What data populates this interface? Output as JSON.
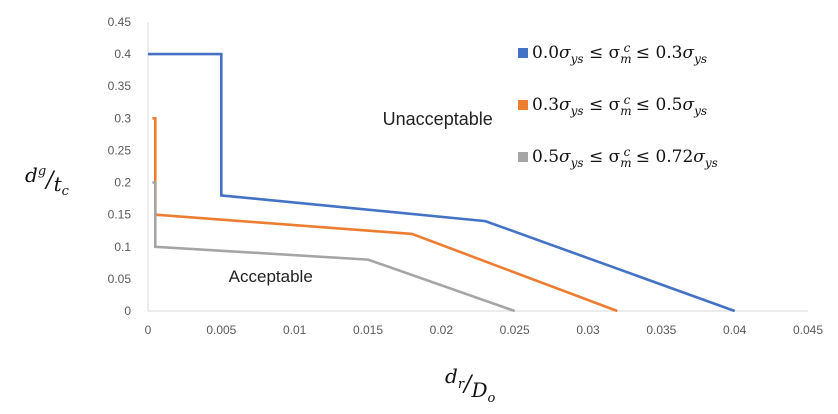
{
  "chart_data": {
    "type": "line",
    "x_axis": {
      "min": 0,
      "max": 0.045,
      "ticks": [
        "0",
        "0.005",
        "0.01",
        "0.015",
        "0.02",
        "0.025",
        "0.03",
        "0.035",
        "0.04",
        "0.045"
      ],
      "label": {
        "main": "d",
        "sub": "r",
        "den_main": "D",
        "den_sub": "o"
      }
    },
    "y_axis": {
      "min": 0,
      "max": 0.45,
      "ticks": [
        "0",
        "0.05",
        "0.1",
        "0.15",
        "0.2",
        "0.25",
        "0.3",
        "0.35",
        "0.4",
        "0.45"
      ],
      "label": {
        "main": "d",
        "sub": "g",
        "den_main": "t",
        "den_sub": "c"
      }
    },
    "grid": false,
    "legend_position": "top-right",
    "annotations": [
      {
        "text": "Unacceptable",
        "x": 0.016,
        "y": 0.29
      },
      {
        "text": "Acceptable",
        "x": 0.0055,
        "y": 0.045
      }
    ],
    "series": [
      {
        "name": "0.0σys ≤ σmc ≤ 0.3σys",
        "lo": "0.0",
        "hi": "0.3",
        "color": "#4472C4",
        "points": [
          [
            0,
            0.4
          ],
          [
            0.005,
            0.4
          ],
          [
            0.005,
            0.18
          ],
          [
            0.023,
            0.14
          ],
          [
            0.04,
            0
          ]
        ]
      },
      {
        "name": "0.3σys ≤ σmc ≤ 0.5σys",
        "lo": "0.3",
        "hi": "0.5",
        "color": "#ED7D31",
        "points": [
          [
            0.0003,
            0.3
          ],
          [
            0.0005,
            0.3
          ],
          [
            0.0005,
            0.15
          ],
          [
            0.018,
            0.12
          ],
          [
            0.032,
            0
          ]
        ]
      },
      {
        "name": "0.5σys ≤ σmc ≤ 0.72σys",
        "lo": "0.5",
        "hi": "0.72",
        "color": "#A5A5A5",
        "points": [
          [
            0.0003,
            0.2
          ],
          [
            0.0005,
            0.2
          ],
          [
            0.0005,
            0.1
          ],
          [
            0.015,
            0.08
          ],
          [
            0.025,
            0
          ]
        ]
      }
    ]
  }
}
